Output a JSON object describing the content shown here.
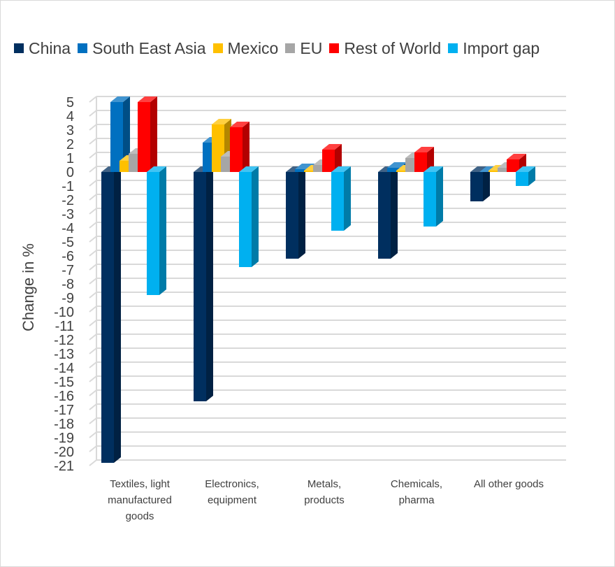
{
  "chart_data": {
    "type": "bar",
    "title": "",
    "xlabel": "",
    "ylabel": "Change in %",
    "ylim": [
      -21,
      5
    ],
    "yticks": [
      5,
      4,
      3,
      2,
      1,
      0,
      -1,
      -2,
      -3,
      -4,
      -5,
      -6,
      -7,
      -8,
      -9,
      -10,
      -11,
      -12,
      -13,
      -14,
      -15,
      -16,
      -17,
      -18,
      -19,
      -20,
      -21
    ],
    "grid": true,
    "legend_position": "top",
    "style": "3d-clustered-column",
    "categories": [
      [
        "Textiles, light",
        "manufactured",
        "goods"
      ],
      [
        "Electronics,",
        "equipment"
      ],
      [
        "Metals,",
        "products"
      ],
      [
        "Chemicals,",
        "pharma"
      ],
      [
        "All other goods"
      ]
    ],
    "series": [
      {
        "name": "China",
        "color": "#002f5f",
        "values": [
          -20.8,
          -16.4,
          -6.2,
          -6.2,
          -2.1
        ]
      },
      {
        "name": "South East Asia",
        "color": "#0070c0",
        "values": [
          5.0,
          2.1,
          0.2,
          0.3,
          0.0
        ]
      },
      {
        "name": "Mexico",
        "color": "#ffc000",
        "values": [
          0.8,
          3.4,
          0.1,
          0.1,
          0.1
        ]
      },
      {
        "name": "EU",
        "color": "#a6a6a6",
        "values": [
          1.3,
          1.1,
          0.5,
          1.0,
          0.3
        ]
      },
      {
        "name": "Rest of World",
        "color": "#ff0000",
        "values": [
          5.0,
          3.2,
          1.6,
          1.4,
          0.9
        ]
      },
      {
        "name": "Import gap",
        "color": "#00b0f0",
        "values": [
          -8.8,
          -6.8,
          -4.2,
          -3.9,
          -1.0
        ]
      }
    ]
  }
}
